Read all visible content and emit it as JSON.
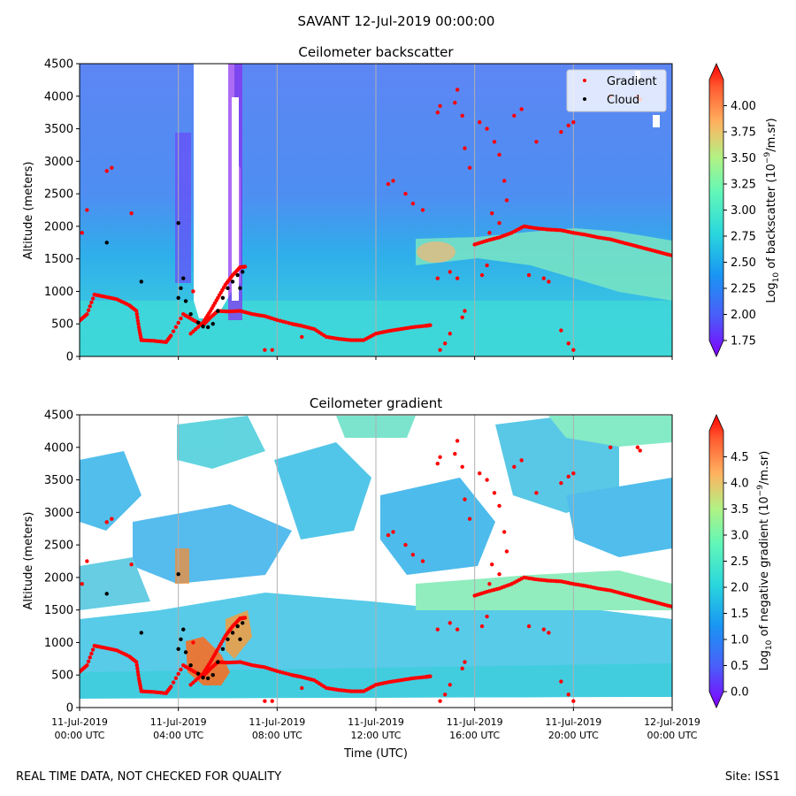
{
  "figure": {
    "suptitle": "SAVANT 12-Jul-2019 00:00:00",
    "footer_left": "REAL TIME DATA, NOT CHECKED FOR QUALITY",
    "footer_right": "Site: ISS1"
  },
  "legend": {
    "placement": "top-right",
    "gradient_label": "Gradient",
    "cloud_label": "Cloud",
    "gradient_color": "#ff0000",
    "cloud_color": "#000000"
  },
  "chart_data": [
    {
      "type": "heatmap",
      "title": "Ceilometer backscatter",
      "ylabel": "Altitude (meters)",
      "xlabel": "",
      "ylim": [
        0,
        4500
      ],
      "xlim_hours": [
        0,
        24
      ],
      "y_ticks": [
        "0",
        "500",
        "1000",
        "1500",
        "2000",
        "2500",
        "3000",
        "3500",
        "4000",
        "4500"
      ],
      "grid": "vertical",
      "colorbar": {
        "label_prefix": "Log",
        "label_sub": "10",
        "label_mid": " of backscatter (10",
        "label_sup": "−9",
        "label_suffix": "/m.sr)",
        "range": [
          1.75,
          4.25
        ],
        "ticks": [
          "1.75",
          "2.00",
          "2.25",
          "2.50",
          "2.75",
          "3.00",
          "3.25",
          "3.50",
          "3.75",
          "4.00"
        ],
        "colormap": "rainbow",
        "extend": "both"
      }
    },
    {
      "type": "heatmap",
      "title": "Ceilometer gradient",
      "ylabel": "Altitude (meters)",
      "xlabel": "Time (UTC)",
      "ylim": [
        0,
        4500
      ],
      "xlim_hours": [
        0,
        24
      ],
      "y_ticks": [
        "0",
        "500",
        "1000",
        "1500",
        "2000",
        "2500",
        "3000",
        "3500",
        "4000",
        "4500"
      ],
      "x_ticks": [
        {
          "date": "11-Jul-2019",
          "time": "00:00 UTC"
        },
        {
          "date": "11-Jul-2019",
          "time": "04:00 UTC"
        },
        {
          "date": "11-Jul-2019",
          "time": "08:00 UTC"
        },
        {
          "date": "11-Jul-2019",
          "time": "12:00 UTC"
        },
        {
          "date": "11-Jul-2019",
          "time": "16:00 UTC"
        },
        {
          "date": "11-Jul-2019",
          "time": "20:00 UTC"
        },
        {
          "date": "12-Jul-2019",
          "time": "00:00 UTC"
        }
      ],
      "grid": "vertical",
      "colorbar": {
        "label_prefix": "Log",
        "label_sub": "10",
        "label_mid": " of negative gradient (10",
        "label_sup": "−9",
        "label_suffix": "/m.sr)",
        "range": [
          0,
          5
        ],
        "ticks": [
          "0.0",
          "0.5",
          "1.0",
          "1.5",
          "2.0",
          "2.5",
          "3.0",
          "3.5",
          "4.0",
          "4.5"
        ],
        "colormap": "rainbow",
        "extend": "both"
      }
    }
  ],
  "series": {
    "gradient_track": [
      [
        0.0,
        550
      ],
      [
        0.3,
        650
      ],
      [
        0.6,
        950
      ],
      [
        1.0,
        920
      ],
      [
        1.5,
        880
      ],
      [
        2.0,
        790
      ],
      [
        2.3,
        700
      ],
      [
        2.4,
        450
      ],
      [
        2.5,
        250
      ],
      [
        3.0,
        240
      ],
      [
        3.5,
        220
      ],
      [
        3.7,
        320
      ],
      [
        4.2,
        650
      ],
      [
        4.6,
        560
      ],
      [
        5.0,
        480
      ],
      [
        5.3,
        600
      ],
      [
        5.6,
        700
      ],
      [
        6.0,
        690
      ],
      [
        6.5,
        700
      ],
      [
        7.0,
        650
      ],
      [
        7.5,
        620
      ],
      [
        8.0,
        560
      ],
      [
        8.6,
        500
      ],
      [
        9.0,
        470
      ],
      [
        9.5,
        420
      ],
      [
        10.0,
        300
      ],
      [
        10.5,
        270
      ],
      [
        11.0,
        250
      ],
      [
        11.5,
        250
      ],
      [
        12.0,
        350
      ],
      [
        12.5,
        390
      ],
      [
        13.0,
        420
      ],
      [
        13.5,
        450
      ],
      [
        14.0,
        470
      ],
      [
        14.2,
        480
      ]
    ],
    "gradient_track_2": [
      [
        16.0,
        1720
      ],
      [
        16.5,
        1780
      ],
      [
        17.0,
        1830
      ],
      [
        17.5,
        1900
      ],
      [
        18.0,
        2000
      ],
      [
        18.5,
        1970
      ],
      [
        19.0,
        1950
      ],
      [
        19.5,
        1940
      ],
      [
        20.0,
        1900
      ],
      [
        20.5,
        1870
      ],
      [
        21.0,
        1830
      ],
      [
        21.5,
        1800
      ],
      [
        22.0,
        1750
      ],
      [
        22.5,
        1700
      ],
      [
        23.0,
        1650
      ],
      [
        23.5,
        1600
      ],
      [
        24.0,
        1550
      ]
    ],
    "gradient_rise": [
      [
        4.5,
        350
      ],
      [
        5.0,
        520
      ],
      [
        5.3,
        700
      ],
      [
        5.6,
        900
      ],
      [
        5.9,
        1100
      ],
      [
        6.2,
        1250
      ],
      [
        6.5,
        1370
      ],
      [
        6.7,
        1380
      ]
    ],
    "cloud_points": [
      [
        4.0,
        900
      ],
      [
        4.1,
        1050
      ],
      [
        4.2,
        1200
      ],
      [
        4.3,
        850
      ],
      [
        4.5,
        650
      ],
      [
        4.8,
        520
      ],
      [
        5.0,
        460
      ],
      [
        5.2,
        450
      ],
      [
        5.4,
        500
      ],
      [
        5.6,
        700
      ],
      [
        5.8,
        900
      ],
      [
        6.0,
        1050
      ],
      [
        6.2,
        1150
      ],
      [
        6.4,
        1250
      ],
      [
        6.6,
        1300
      ],
      [
        4.0,
        2050
      ],
      [
        1.1,
        1750
      ],
      [
        2.5,
        1150
      ],
      [
        6.5,
        1050
      ]
    ],
    "gradient_scatter": [
      [
        15.2,
        3900
      ],
      [
        15.3,
        4100
      ],
      [
        15.5,
        3700
      ],
      [
        15.6,
        3200
      ],
      [
        15.8,
        2900
      ],
      [
        16.2,
        3600
      ],
      [
        16.5,
        3500
      ],
      [
        16.8,
        3300
      ],
      [
        17.0,
        3100
      ],
      [
        17.2,
        2700
      ],
      [
        17.3,
        2400
      ],
      [
        17.6,
        3700
      ],
      [
        17.9,
        3800
      ],
      [
        18.5,
        3300
      ],
      [
        19.5,
        3450
      ],
      [
        19.8,
        3550
      ],
      [
        20.0,
        3600
      ],
      [
        21.5,
        4000
      ],
      [
        22.6,
        4000
      ],
      [
        22.7,
        3950
      ],
      [
        14.5,
        3750
      ],
      [
        14.6,
        3850
      ],
      [
        12.5,
        2650
      ],
      [
        12.7,
        2700
      ],
      [
        13.2,
        2500
      ],
      [
        13.5,
        2350
      ],
      [
        13.9,
        2250
      ],
      [
        14.5,
        1200
      ],
      [
        15.0,
        1300
      ],
      [
        15.3,
        1200
      ],
      [
        16.3,
        1250
      ],
      [
        16.5,
        1400
      ],
      [
        16.6,
        1900
      ],
      [
        16.7,
        2200
      ],
      [
        17.0,
        2050
      ],
      [
        18.2,
        1250
      ],
      [
        18.8,
        1200
      ],
      [
        19.0,
        1150
      ],
      [
        19.5,
        400
      ],
      [
        19.8,
        200
      ],
      [
        20.0,
        100
      ],
      [
        14.6,
        100
      ],
      [
        14.8,
        200
      ],
      [
        15.0,
        350
      ],
      [
        15.5,
        600
      ],
      [
        15.6,
        700
      ],
      [
        1.1,
        2850
      ],
      [
        1.3,
        2900
      ],
      [
        2.1,
        2200
      ],
      [
        0.3,
        2250
      ],
      [
        0.1,
        1900
      ],
      [
        9.0,
        300
      ],
      [
        4.6,
        1000
      ],
      [
        7.5,
        100
      ],
      [
        7.8,
        100
      ]
    ]
  }
}
